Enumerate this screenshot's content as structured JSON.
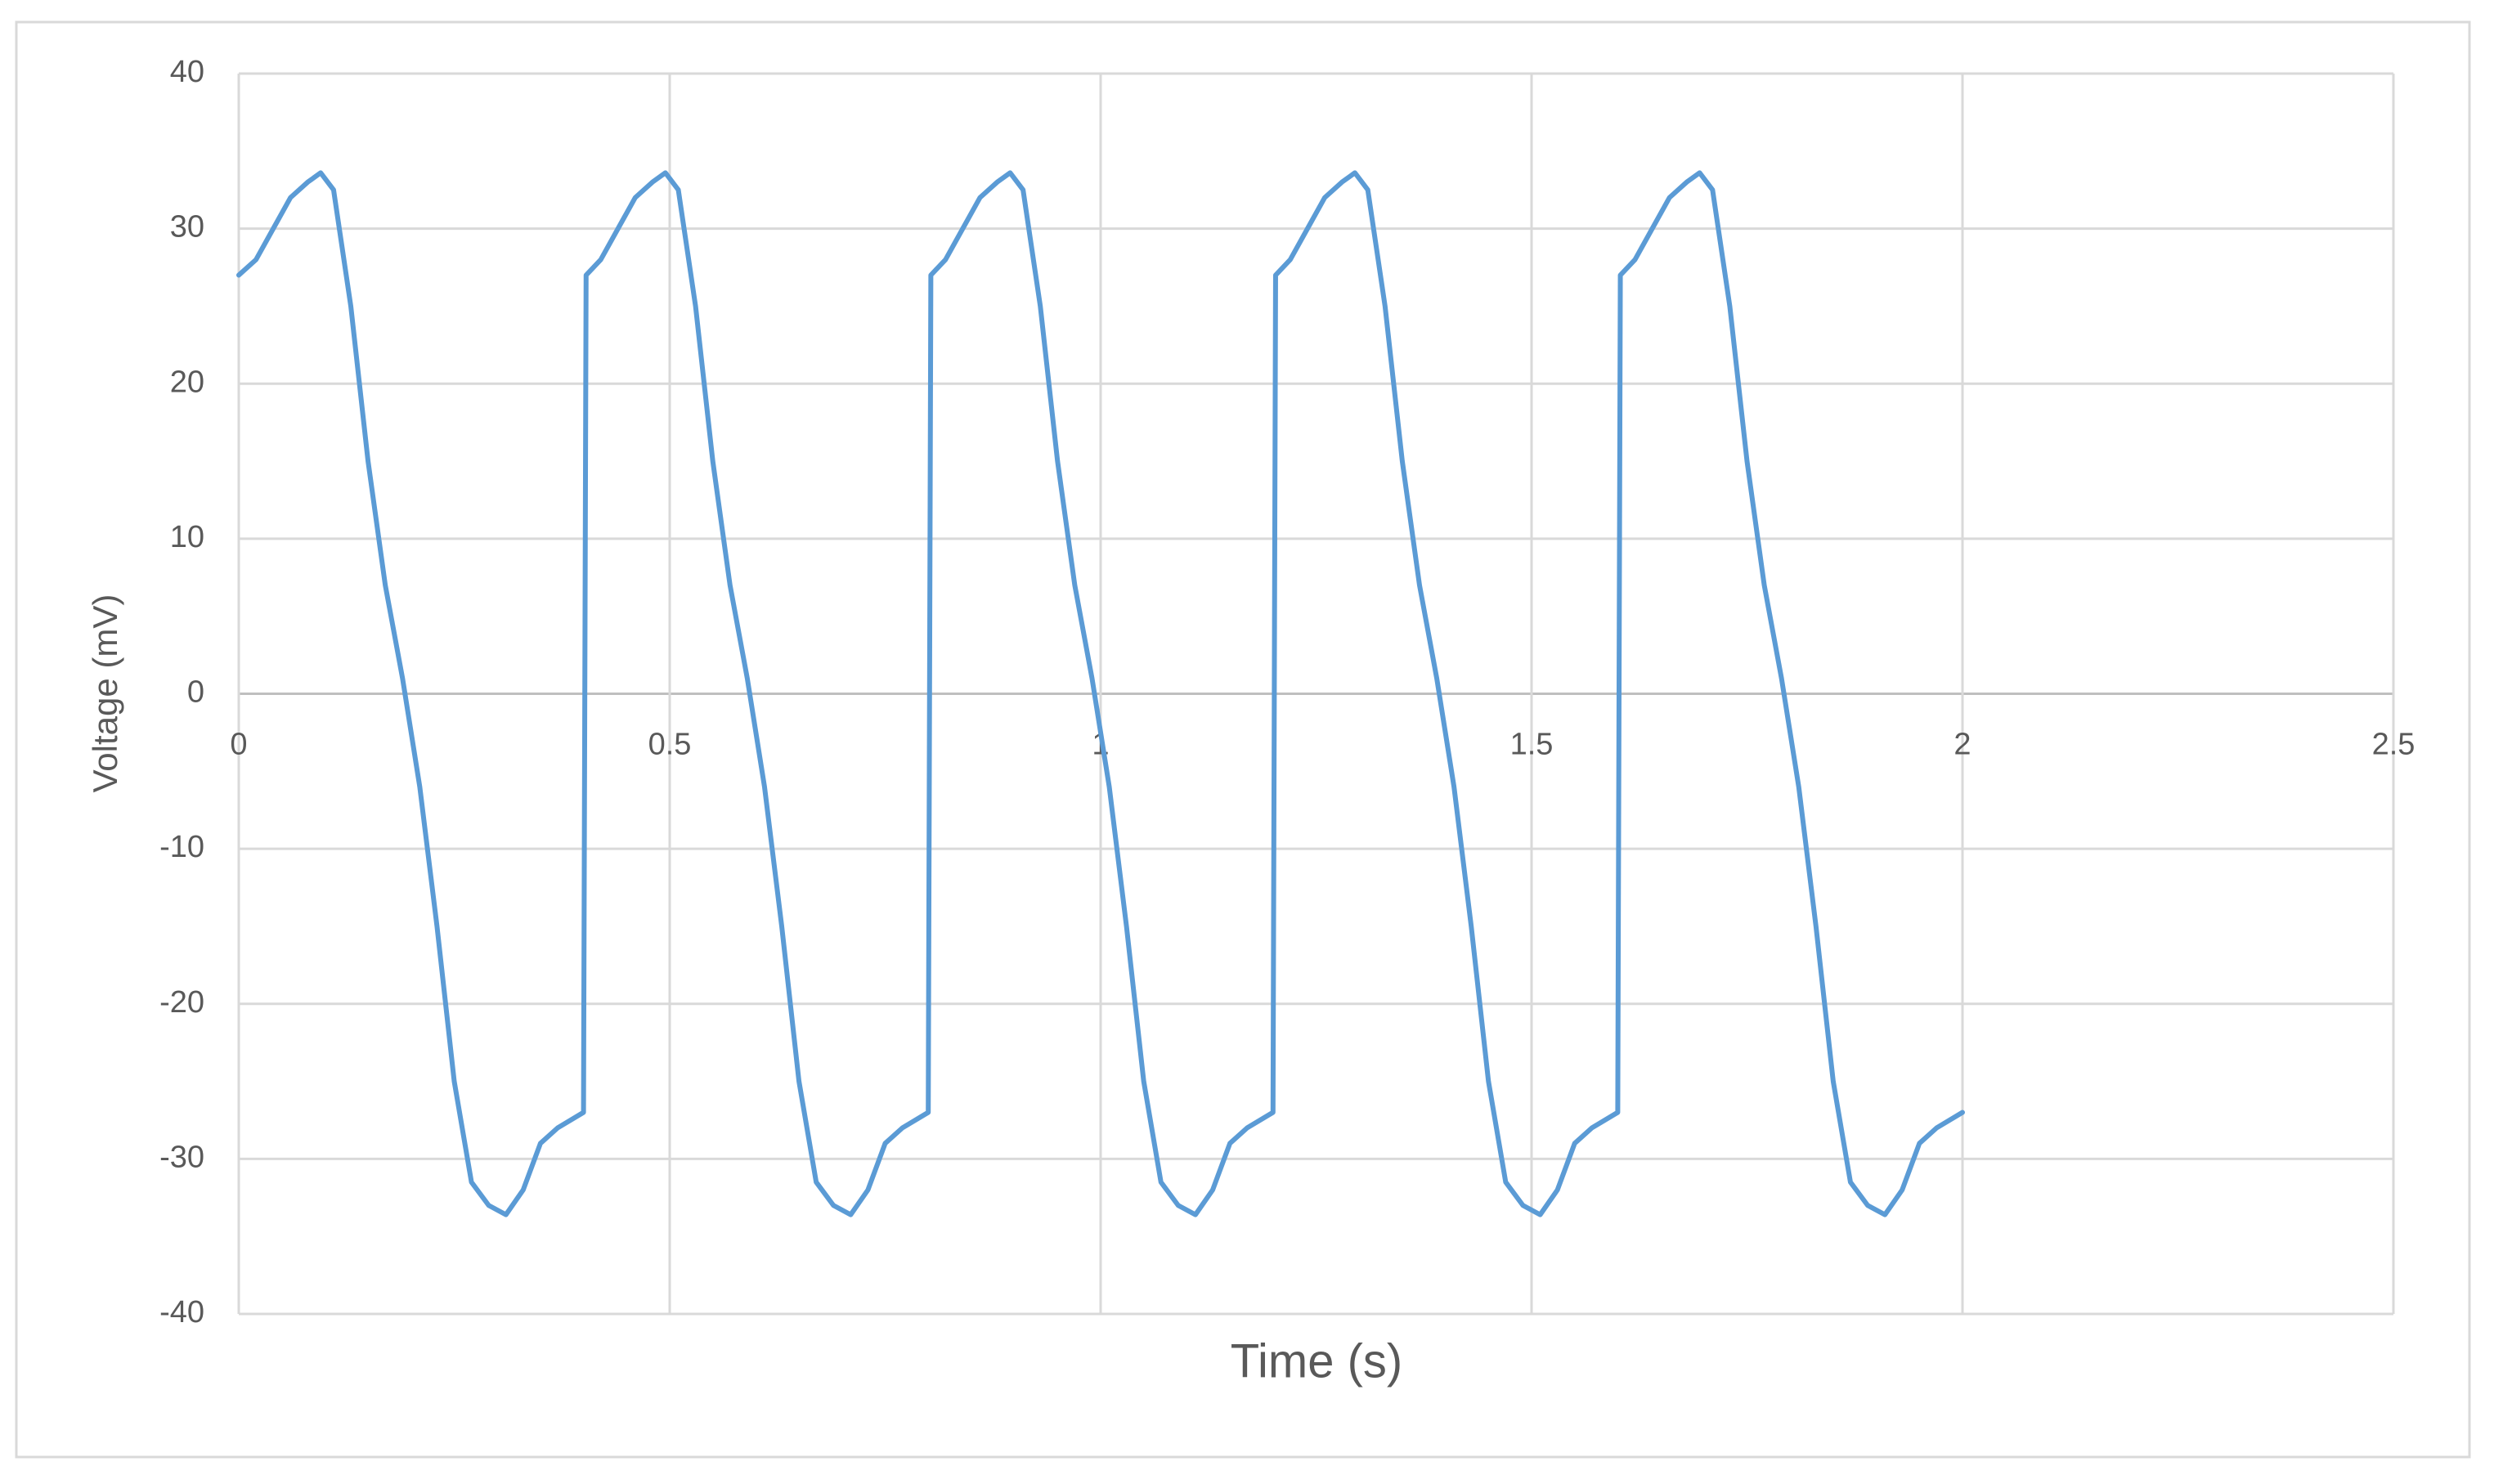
{
  "chart_data": {
    "type": "line",
    "x_label": "Time (s)",
    "y_label": "Voltage (mV)",
    "x": [
      0,
      0.02,
      0.04,
      0.06,
      0.08,
      0.095,
      0.11,
      0.13,
      0.15,
      0.17,
      0.19,
      0.21,
      0.23,
      0.25,
      0.27,
      0.29,
      0.31,
      0.33,
      0.35,
      0.37,
      0.4,
      0.403,
      0.42,
      0.44,
      0.46,
      0.48,
      0.495,
      0.51,
      0.53,
      0.55,
      0.57,
      0.59,
      0.61,
      0.63,
      0.65,
      0.67,
      0.69,
      0.71,
      0.73,
      0.75,
      0.77,
      0.8,
      0.803,
      0.82,
      0.84,
      0.86,
      0.88,
      0.895,
      0.91,
      0.93,
      0.95,
      0.97,
      0.99,
      1.01,
      1.03,
      1.05,
      1.07,
      1.09,
      1.11,
      1.13,
      1.15,
      1.17,
      1.2,
      1.203,
      1.22,
      1.24,
      1.26,
      1.28,
      1.295,
      1.31,
      1.33,
      1.35,
      1.37,
      1.39,
      1.41,
      1.43,
      1.45,
      1.47,
      1.49,
      1.51,
      1.53,
      1.55,
      1.57,
      1.6,
      1.603,
      1.62,
      1.64,
      1.66,
      1.68,
      1.695,
      1.71,
      1.73,
      1.75,
      1.77,
      1.79,
      1.81,
      1.83,
      1.85,
      1.87,
      1.89,
      1.91,
      1.93,
      1.95,
      1.97,
      2
    ],
    "values": [
      27,
      28,
      30,
      32,
      33,
      33.6,
      32.5,
      25,
      15,
      7,
      1,
      -6,
      -15,
      -25,
      -31.5,
      -33,
      -33.6,
      -32,
      -29,
      -28,
      -27,
      27,
      28,
      30,
      32,
      33,
      33.6,
      32.5,
      25,
      15,
      7,
      1,
      -6,
      -15,
      -25,
      -31.5,
      -33,
      -33.6,
      -32,
      -29,
      -28,
      -27,
      27,
      28,
      30,
      32,
      33,
      33.6,
      32.5,
      25,
      15,
      7,
      1,
      -6,
      -15,
      -25,
      -31.5,
      -33,
      -33.6,
      -32,
      -29,
      -28,
      -27,
      27,
      28,
      30,
      32,
      33,
      33.6,
      32.5,
      25,
      15,
      7,
      1,
      -6,
      -15,
      -25,
      -31.5,
      -33,
      -33.6,
      -32,
      -29,
      -28,
      -27,
      27,
      28,
      30,
      32,
      33,
      33.6,
      32.5,
      25,
      15,
      7,
      1,
      -6,
      -15,
      -25,
      -31.5,
      -33,
      -33.6,
      -32,
      -29,
      -28,
      -27
    ],
    "color": "#5b9bd5",
    "xlim": [
      0,
      2.5
    ],
    "xticks": [
      0,
      0.5,
      1,
      1.5,
      2,
      2.5
    ],
    "ylim": [
      -40,
      40
    ],
    "yticks": [
      -40,
      -30,
      -20,
      -10,
      0,
      10,
      20,
      30,
      40
    ],
    "grid": true
  }
}
